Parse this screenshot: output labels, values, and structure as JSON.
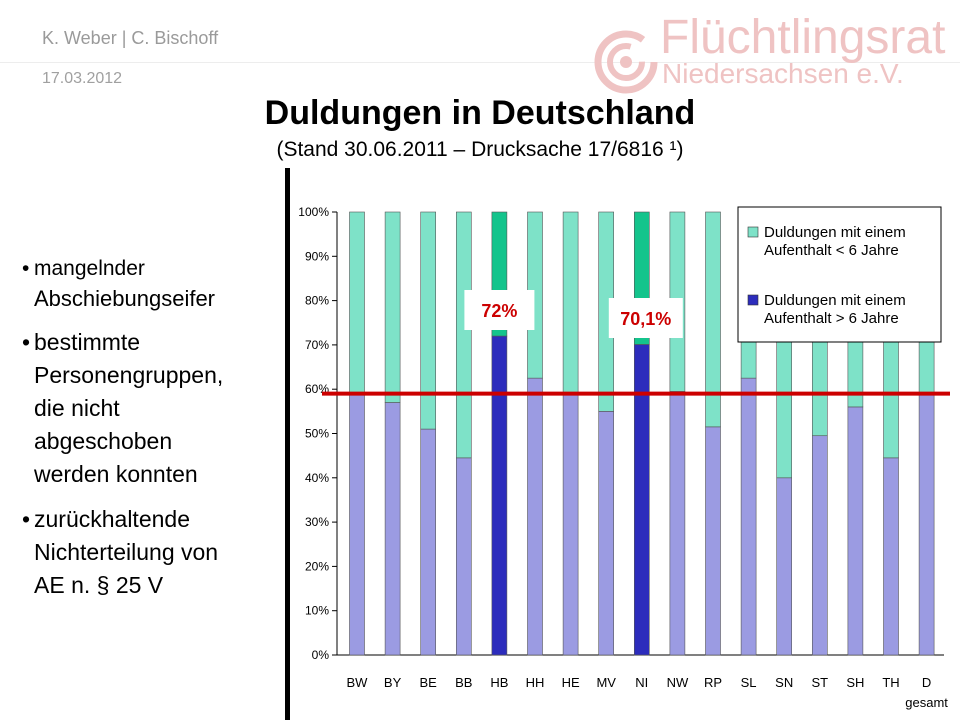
{
  "header": {
    "author": "K. Weber | C. Bischoff",
    "date": "17.03.2012",
    "logo_line1": "Flüchtlingsrat",
    "logo_line2": "Niedersachsen e.V."
  },
  "slide": {
    "title": "Duldungen in Deutschland",
    "subtitle": "(Stand 30.06.2011 – Drucksache 17/6816 ¹)"
  },
  "bullets": [
    {
      "marker": "•",
      "lines": [
        "mangelnder",
        "Abschiebungseifer"
      ]
    },
    {
      "marker": "•",
      "lines": [
        "bestimmte",
        "Personengruppen,",
        "die nicht",
        "abgeschoben",
        "werden konnten"
      ]
    },
    {
      "marker": "•",
      "lines": [
        "zurückhaltende",
        "Nichterteilung von",
        "AE n. § 25 V"
      ]
    }
  ],
  "colors": {
    "under6": "#7ee2c8",
    "over6": "#9b9be2",
    "under6_highlight": "#14c48c",
    "over6_highlight": "#2c2cbc",
    "reference_line": "#cc0000",
    "logo": "#efc3c3"
  },
  "chart_data": {
    "type": "bar",
    "stacked": true,
    "normalized": true,
    "categories": [
      "BW",
      "BY",
      "BE",
      "BB",
      "HB",
      "HH",
      "HE",
      "MV",
      "NI",
      "NW",
      "RP",
      "SL",
      "SN",
      "ST",
      "SH",
      "TH",
      "D"
    ],
    "category_sublabel": {
      "D": "gesamt"
    },
    "highlighted": [
      "HB",
      "NI"
    ],
    "series": [
      {
        "name": "Duldungen mit einem Aufenthalt > 6 Jahre",
        "legend_lines": [
          "Duldungen mit einem",
          "Aufenthalt > 6 Jahre"
        ],
        "color_key": "over6",
        "values": [
          59,
          57,
          51,
          44.5,
          72,
          62.5,
          59,
          55,
          70.1,
          59.5,
          51.5,
          62.5,
          40,
          49.5,
          56,
          44.5,
          59
        ]
      },
      {
        "name": "Duldungen mit einem Aufenthalt < 6 Jahre",
        "legend_lines": [
          "Duldungen mit einem",
          "Aufenthalt < 6 Jahre"
        ],
        "color_key": "under6",
        "values": [
          41,
          43,
          49,
          55.5,
          28,
          37.5,
          41,
          45,
          29.9,
          40.5,
          48.5,
          37.5,
          60,
          50.5,
          44,
          55.5,
          41
        ]
      }
    ],
    "yticks": [
      "0%",
      "10%",
      "20%",
      "30%",
      "40%",
      "50%",
      "60%",
      "70%",
      "80%",
      "90%",
      "100%"
    ],
    "ylim": [
      0,
      100
    ],
    "reference_line": 59,
    "annotations": [
      {
        "category": "HB",
        "text": "72%"
      },
      {
        "category": "NI",
        "text": "70,1%"
      }
    ],
    "legend_position": "top-right",
    "grid": false
  }
}
